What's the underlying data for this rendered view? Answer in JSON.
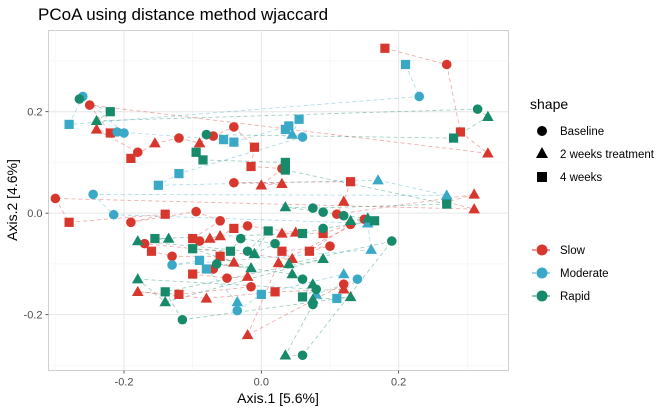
{
  "chart_data": {
    "type": "scatter",
    "title": "PCoA using distance method wjaccard",
    "xlabel": "Axis.1   [5.6%]",
    "ylabel": "Axis.2   [4.6%]",
    "xlim": [
      -0.31,
      0.36
    ],
    "ylim": [
      -0.31,
      0.36
    ],
    "x_ticks": [
      -0.2,
      0.0,
      0.2
    ],
    "x_tick_labels": [
      "-0.2",
      "0.0",
      "0.2"
    ],
    "y_ticks": [
      -0.2,
      0.0,
      0.2
    ],
    "y_tick_labels": [
      "-0.2",
      "0.0",
      "0.2"
    ],
    "grid": true,
    "connecting_lines": "dashed, per subject, colored by group",
    "legend_placement": "right",
    "legend_shape": {
      "title": "shape",
      "entries": [
        {
          "label": "Baseline",
          "shape": "circle"
        },
        {
          "label": "2 weeks treatment",
          "shape": "triangle"
        },
        {
          "label": "4 weeks",
          "shape": "square"
        }
      ]
    },
    "legend_color": {
      "entries": [
        {
          "label": "Slow",
          "color": "#d7372d"
        },
        {
          "label": "Moderate",
          "color": "#3aa8c7"
        },
        {
          "label": "Rapid",
          "color": "#168a6a"
        }
      ]
    },
    "series": [
      {
        "group": "Slow",
        "color": "#d7372d",
        "points": [
          {
            "shape": "square",
            "x": 0.18,
            "y": 0.325
          },
          {
            "shape": "circle",
            "x": 0.27,
            "y": 0.293
          },
          {
            "shape": "square",
            "x": 0.29,
            "y": 0.16
          },
          {
            "shape": "triangle",
            "x": 0.33,
            "y": 0.118
          },
          {
            "shape": "circle",
            "x": -0.25,
            "y": 0.213
          },
          {
            "shape": "square",
            "x": -0.22,
            "y": 0.158
          },
          {
            "shape": "triangle",
            "x": -0.24,
            "y": 0.165
          },
          {
            "shape": "circle",
            "x": -0.18,
            "y": 0.12
          },
          {
            "shape": "square",
            "x": -0.19,
            "y": 0.108
          },
          {
            "shape": "triangle",
            "x": -0.155,
            "y": 0.138
          },
          {
            "shape": "circle",
            "x": -0.12,
            "y": 0.148
          },
          {
            "shape": "triangle",
            "x": -0.09,
            "y": 0.138
          },
          {
            "shape": "circle",
            "x": -0.07,
            "y": 0.152
          },
          {
            "shape": "circle",
            "x": -0.04,
            "y": 0.17
          },
          {
            "shape": "square",
            "x": -0.01,
            "y": 0.13
          },
          {
            "shape": "square",
            "x": -0.015,
            "y": 0.092
          },
          {
            "shape": "circle",
            "x": 0.03,
            "y": 0.088
          },
          {
            "shape": "triangle",
            "x": 0.0,
            "y": 0.055
          },
          {
            "shape": "triangle",
            "x": 0.03,
            "y": 0.058
          },
          {
            "shape": "circle",
            "x": -0.04,
            "y": 0.06
          },
          {
            "shape": "square",
            "x": 0.13,
            "y": 0.062
          },
          {
            "shape": "triangle",
            "x": 0.12,
            "y": 0.023
          },
          {
            "shape": "circle",
            "x": 0.11,
            "y": -0.002
          },
          {
            "shape": "triangle",
            "x": 0.31,
            "y": 0.037
          },
          {
            "shape": "circle",
            "x": 0.27,
            "y": 0.022
          },
          {
            "shape": "triangle",
            "x": 0.31,
            "y": 0.008
          },
          {
            "shape": "circle",
            "x": -0.3,
            "y": 0.029
          },
          {
            "shape": "square",
            "x": -0.28,
            "y": -0.018
          },
          {
            "shape": "square",
            "x": -0.14,
            "y": -0.002
          },
          {
            "shape": "circle",
            "x": -0.19,
            "y": -0.018
          },
          {
            "shape": "circle",
            "x": -0.095,
            "y": 0.003
          },
          {
            "shape": "circle",
            "x": -0.06,
            "y": -0.015
          },
          {
            "shape": "square",
            "x": -0.1,
            "y": -0.05
          },
          {
            "shape": "triangle",
            "x": -0.075,
            "y": -0.05
          },
          {
            "shape": "circle",
            "x": -0.09,
            "y": -0.055
          },
          {
            "shape": "triangle",
            "x": -0.06,
            "y": -0.045
          },
          {
            "shape": "square",
            "x": -0.04,
            "y": -0.03
          },
          {
            "shape": "circle",
            "x": -0.02,
            "y": -0.025
          },
          {
            "shape": "triangle",
            "x": 0.05,
            "y": -0.038
          },
          {
            "shape": "triangle",
            "x": 0.03,
            "y": -0.04
          },
          {
            "shape": "square",
            "x": 0.09,
            "y": -0.04
          },
          {
            "shape": "circle",
            "x": 0.13,
            "y": -0.022
          },
          {
            "shape": "square",
            "x": 0.07,
            "y": -0.075
          },
          {
            "shape": "circle",
            "x": 0.1,
            "y": -0.065
          },
          {
            "shape": "square",
            "x": 0.03,
            "y": -0.075
          },
          {
            "shape": "triangle",
            "x": 0.045,
            "y": -0.09
          },
          {
            "shape": "circle",
            "x": -0.17,
            "y": -0.06
          },
          {
            "shape": "square",
            "x": -0.16,
            "y": -0.075
          },
          {
            "shape": "circle",
            "x": -0.13,
            "y": -0.085
          },
          {
            "shape": "square",
            "x": -0.06,
            "y": -0.085
          },
          {
            "shape": "triangle",
            "x": -0.04,
            "y": -0.097
          },
          {
            "shape": "circle",
            "x": -0.07,
            "y": -0.11
          },
          {
            "shape": "square",
            "x": -0.1,
            "y": -0.12
          },
          {
            "shape": "circle",
            "x": -0.05,
            "y": -0.128
          },
          {
            "shape": "triangle",
            "x": -0.02,
            "y": -0.125
          },
          {
            "shape": "circle",
            "x": -0.015,
            "y": -0.145
          },
          {
            "shape": "square",
            "x": -0.12,
            "y": -0.16
          },
          {
            "shape": "triangle",
            "x": -0.18,
            "y": -0.155
          },
          {
            "shape": "triangle",
            "x": -0.08,
            "y": -0.168
          },
          {
            "shape": "square",
            "x": 0.02,
            "y": -0.155
          },
          {
            "shape": "triangle",
            "x": 0.12,
            "y": -0.15
          },
          {
            "shape": "circle",
            "x": 0.12,
            "y": -0.14
          },
          {
            "shape": "triangle",
            "x": -0.02,
            "y": -0.24
          },
          {
            "shape": "triangle",
            "x": 0.025,
            "y": -0.098
          },
          {
            "shape": "circle",
            "x": 0.15,
            "y": -0.012
          }
        ]
      },
      {
        "group": "Moderate",
        "color": "#3aa8c7",
        "points": [
          {
            "shape": "square",
            "x": 0.21,
            "y": 0.293
          },
          {
            "shape": "circle",
            "x": 0.23,
            "y": 0.23
          },
          {
            "shape": "square",
            "x": -0.28,
            "y": 0.175
          },
          {
            "shape": "circle",
            "x": -0.26,
            "y": 0.23
          },
          {
            "shape": "circle",
            "x": -0.2,
            "y": 0.158
          },
          {
            "shape": "circle",
            "x": -0.21,
            "y": 0.16
          },
          {
            "shape": "square",
            "x": -0.055,
            "y": 0.145
          },
          {
            "shape": "square",
            "x": -0.04,
            "y": 0.14
          },
          {
            "shape": "square",
            "x": 0.04,
            "y": 0.172
          },
          {
            "shape": "square",
            "x": 0.055,
            "y": 0.185
          },
          {
            "shape": "triangle",
            "x": 0.045,
            "y": 0.155
          },
          {
            "shape": "square",
            "x": 0.035,
            "y": 0.165
          },
          {
            "shape": "circle",
            "x": 0.06,
            "y": 0.15
          },
          {
            "shape": "square",
            "x": -0.12,
            "y": 0.078
          },
          {
            "shape": "square",
            "x": -0.15,
            "y": 0.055
          },
          {
            "shape": "triangle",
            "x": 0.17,
            "y": 0.065
          },
          {
            "shape": "triangle",
            "x": 0.27,
            "y": 0.035
          },
          {
            "shape": "circle",
            "x": -0.245,
            "y": 0.037
          },
          {
            "shape": "circle",
            "x": -0.215,
            "y": -0.003
          },
          {
            "shape": "triangle",
            "x": 0.155,
            "y": -0.02
          },
          {
            "shape": "triangle",
            "x": 0.16,
            "y": -0.072
          },
          {
            "shape": "circle",
            "x": -0.13,
            "y": -0.102
          },
          {
            "shape": "square",
            "x": -0.09,
            "y": -0.093
          },
          {
            "shape": "square",
            "x": -0.08,
            "y": -0.11
          },
          {
            "shape": "triangle",
            "x": -0.035,
            "y": -0.175
          },
          {
            "shape": "circle",
            "x": -0.035,
            "y": -0.192
          },
          {
            "shape": "square",
            "x": 0.0,
            "y": -0.16
          },
          {
            "shape": "triangle",
            "x": 0.12,
            "y": -0.12
          },
          {
            "shape": "square",
            "x": 0.11,
            "y": -0.168
          },
          {
            "shape": "circle",
            "x": 0.14,
            "y": -0.13
          },
          {
            "shape": "triangle",
            "x": 0.08,
            "y": -0.16
          }
        ]
      },
      {
        "group": "Rapid",
        "color": "#168a6a",
        "points": [
          {
            "shape": "circle",
            "x": -0.265,
            "y": 0.225
          },
          {
            "shape": "square",
            "x": -0.22,
            "y": 0.2
          },
          {
            "shape": "triangle",
            "x": -0.24,
            "y": 0.182
          },
          {
            "shape": "circle",
            "x": 0.315,
            "y": 0.205
          },
          {
            "shape": "triangle",
            "x": 0.33,
            "y": 0.19
          },
          {
            "shape": "square",
            "x": 0.28,
            "y": 0.148
          },
          {
            "shape": "circle",
            "x": -0.08,
            "y": 0.155
          },
          {
            "shape": "square",
            "x": -0.095,
            "y": 0.12
          },
          {
            "shape": "square",
            "x": -0.085,
            "y": 0.105
          },
          {
            "shape": "square",
            "x": 0.035,
            "y": 0.1
          },
          {
            "shape": "square",
            "x": 0.035,
            "y": 0.085
          },
          {
            "shape": "square",
            "x": 0.27,
            "y": 0.018
          },
          {
            "shape": "circle",
            "x": 0.075,
            "y": 0.01
          },
          {
            "shape": "triangle",
            "x": 0.035,
            "y": 0.012
          },
          {
            "shape": "circle",
            "x": 0.09,
            "y": 0.002
          },
          {
            "shape": "circle",
            "x": 0.12,
            "y": -0.005
          },
          {
            "shape": "triangle",
            "x": 0.155,
            "y": -0.01
          },
          {
            "shape": "triangle",
            "x": 0.13,
            "y": -0.015
          },
          {
            "shape": "square",
            "x": 0.165,
            "y": -0.015
          },
          {
            "shape": "circle",
            "x": 0.09,
            "y": -0.03
          },
          {
            "shape": "square",
            "x": 0.06,
            "y": -0.04
          },
          {
            "shape": "square",
            "x": -0.155,
            "y": -0.05
          },
          {
            "shape": "triangle",
            "x": -0.135,
            "y": -0.05
          },
          {
            "shape": "triangle",
            "x": -0.18,
            "y": -0.055
          },
          {
            "shape": "circle",
            "x": -0.02,
            "y": -0.075
          },
          {
            "shape": "square",
            "x": 0.01,
            "y": -0.035
          },
          {
            "shape": "triangle",
            "x": -0.01,
            "y": -0.08
          },
          {
            "shape": "circle",
            "x": 0.02,
            "y": -0.06
          },
          {
            "shape": "circle",
            "x": -0.03,
            "y": -0.05
          },
          {
            "shape": "square",
            "x": -0.045,
            "y": -0.075
          },
          {
            "shape": "square",
            "x": -0.1,
            "y": -0.07
          },
          {
            "shape": "triangle",
            "x": -0.015,
            "y": -0.108
          },
          {
            "shape": "circle",
            "x": -0.065,
            "y": -0.1
          },
          {
            "shape": "triangle",
            "x": 0.045,
            "y": -0.12
          },
          {
            "shape": "circle",
            "x": 0.06,
            "y": -0.13
          },
          {
            "shape": "triangle",
            "x": 0.075,
            "y": -0.14
          },
          {
            "shape": "square",
            "x": 0.06,
            "y": -0.165
          },
          {
            "shape": "circle",
            "x": 0.08,
            "y": -0.15
          },
          {
            "shape": "triangle",
            "x": -0.18,
            "y": -0.13
          },
          {
            "shape": "triangle",
            "x": -0.14,
            "y": -0.175
          },
          {
            "shape": "triangle",
            "x": 0.09,
            "y": -0.09
          },
          {
            "shape": "square",
            "x": -0.14,
            "y": -0.155
          },
          {
            "shape": "circle",
            "x": -0.115,
            "y": -0.21
          },
          {
            "shape": "triangle",
            "x": 0.13,
            "y": -0.165
          },
          {
            "shape": "triangle",
            "x": 0.075,
            "y": -0.17
          },
          {
            "shape": "circle",
            "x": 0.075,
            "y": -0.18
          },
          {
            "shape": "triangle",
            "x": 0.035,
            "y": -0.28
          },
          {
            "shape": "circle",
            "x": 0.06,
            "y": -0.28
          },
          {
            "shape": "circle",
            "x": 0.19,
            "y": -0.055
          },
          {
            "shape": "triangle",
            "x": 0.04,
            "y": -0.1
          }
        ]
      }
    ]
  }
}
